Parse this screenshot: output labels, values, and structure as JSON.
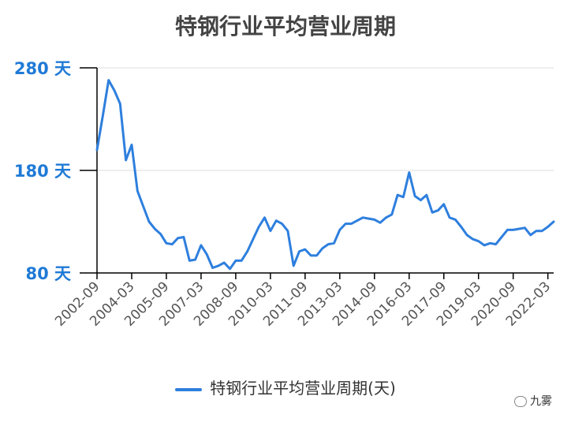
{
  "chart_data": {
    "type": "line",
    "title": "特钢行业平均营业周期",
    "yunit": "天",
    "ylim": [
      80,
      280
    ],
    "yticks": [
      80,
      180,
      280
    ],
    "xticks": [
      "2002-09",
      "2004-03",
      "2005-09",
      "2007-03",
      "2008-09",
      "2010-03",
      "2011-09",
      "2013-03",
      "2014-09",
      "2016-03",
      "2017-09",
      "2019-03",
      "2020-09",
      "2022-03"
    ],
    "series": [
      {
        "name": "特钢行业平均营业周期(天)",
        "color": "#2e7fde",
        "values": [
          200,
          233,
          268,
          258,
          245,
          190,
          205,
          160,
          145,
          130,
          123,
          118,
          109,
          108,
          114,
          115,
          92,
          93,
          107,
          98,
          85,
          87,
          90,
          84,
          92,
          92,
          101,
          113,
          125,
          134,
          121,
          131,
          128,
          121,
          87,
          101,
          103,
          97,
          97,
          104,
          108,
          109,
          122,
          128,
          128,
          131,
          134,
          133,
          132,
          129,
          134,
          137,
          156,
          154,
          178,
          155,
          151,
          156,
          139,
          141,
          147,
          134,
          132,
          125,
          117,
          113,
          111,
          107,
          109,
          108,
          115,
          122,
          122,
          123,
          124,
          117,
          121,
          121,
          125,
          130
        ]
      }
    ]
  },
  "legend": {
    "label": "特钢行业平均营业周期(天)",
    "color": "#2e7fde"
  },
  "watermark": "九雾",
  "colors": {
    "axis": "#000000",
    "grid": "#dddddd",
    "tick_label": "#1f7ad6",
    "x_tick_label": "#555555"
  }
}
